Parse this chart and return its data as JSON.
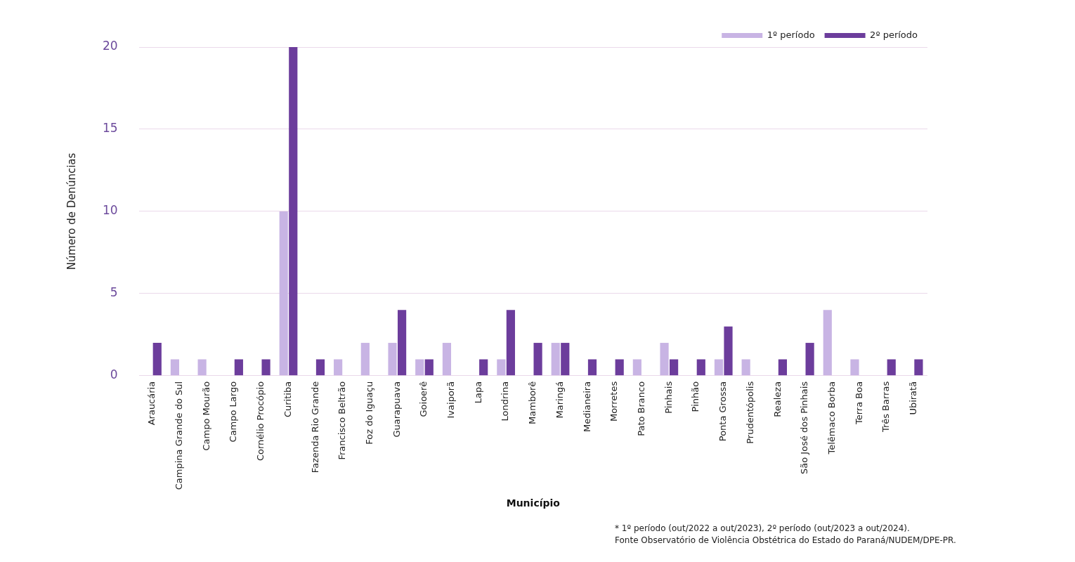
{
  "chart_data": {
    "type": "bar",
    "xlabel": "Município",
    "ylabel": "Número de Denúncias",
    "categories": [
      "Araucária",
      "Campina Grande do Sul",
      "Campo Mourão",
      "Campo Largo",
      "Cornélio Procópio",
      "Curitiba",
      "Fazenda Rio Grande",
      "Francisco Beltrão",
      "Foz do Iguaçu",
      "Guarapuava",
      "Goioerê",
      "Ivaiporã",
      "Lapa",
      "Londrina",
      "Mamborê",
      "Maringá",
      "Medianeira",
      "Morretes",
      "Pato Branco",
      "Pinhais",
      "Pinhão",
      "Ponta Grossa",
      "Prudentópolis",
      "Realeza",
      "São José dos Pinhais",
      "Telêmaco Borba",
      "Terra Boa",
      "Três Barras",
      "Ubiratã"
    ],
    "series": [
      {
        "name": "1º período",
        "color": "#c8b4e4",
        "values": [
          0,
          1,
          1,
          0,
          0,
          10,
          0,
          1,
          2,
          2,
          1,
          2,
          0,
          1,
          0,
          2,
          0,
          0,
          1,
          2,
          0,
          1,
          1,
          0,
          0,
          4,
          1,
          0,
          0
        ]
      },
      {
        "name": "2º período",
        "color": "#6c3d9c",
        "values": [
          2,
          0,
          0,
          1,
          1,
          20,
          1,
          0,
          0,
          4,
          1,
          0,
          1,
          4,
          2,
          2,
          1,
          1,
          0,
          1,
          1,
          3,
          0,
          1,
          2,
          0,
          0,
          1,
          1
        ]
      }
    ],
    "ylim": [
      0,
      20
    ],
    "yticks": [
      0,
      5,
      10,
      15,
      20
    ],
    "grid": "y",
    "legend": "top right",
    "annotations": [
      "* 1º período (out/2022 a out/2023), 2º período (out/2023 a out/2024).",
      "Fonte  Observatório de Violência Obstétrica do Estado do Paraná/NUDEM/DPE-PR."
    ]
  }
}
